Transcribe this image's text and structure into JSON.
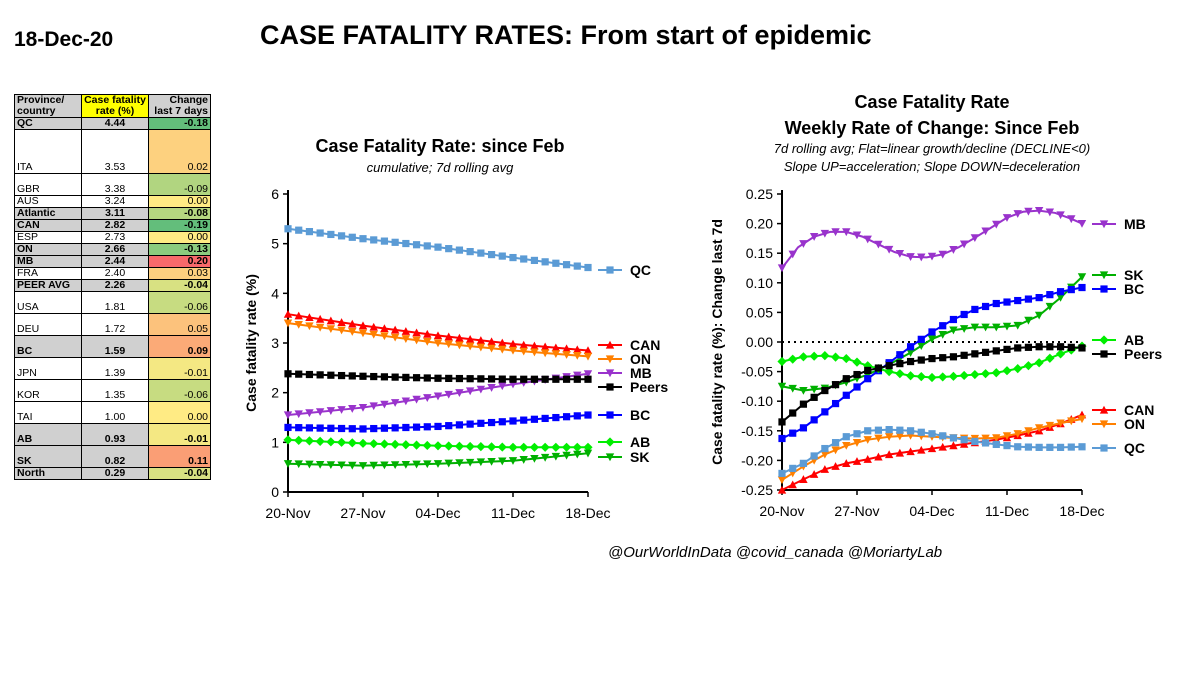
{
  "date_label": "18-Dec-20",
  "main_title": "CASE FATALITY RATES: From start of epidemic",
  "credit": "@OurWorldInData @covid_canada @MoriartyLab",
  "table": {
    "headers": [
      "Province/ country",
      "Case fatality rate (%)",
      "Change last 7 days"
    ],
    "rows": [
      {
        "name": "QC",
        "rate": "4.44",
        "change": "-0.18",
        "bold": true,
        "color": "#63be7b",
        "size": "s"
      },
      {
        "name": "ITA",
        "rate": "3.53",
        "change": "0.02",
        "bold": false,
        "color": "#fdd17f",
        "size": "l"
      },
      {
        "name": "GBR",
        "rate": "3.38",
        "change": "-0.09",
        "bold": false,
        "color": "#b1d580",
        "size": "m"
      },
      {
        "name": "AUS",
        "rate": "3.24",
        "change": "0.00",
        "bold": false,
        "color": "#ffeb84",
        "size": "s"
      },
      {
        "name": "Atlantic",
        "rate": "3.11",
        "change": "-0.08",
        "bold": true,
        "color": "#b6d780",
        "size": "s"
      },
      {
        "name": "CAN",
        "rate": "2.82",
        "change": "-0.19",
        "bold": true,
        "color": "#63be7b",
        "size": "s"
      },
      {
        "name": "ESP",
        "rate": "2.73",
        "change": "0.00",
        "bold": false,
        "color": "#ffeb84",
        "size": "s"
      },
      {
        "name": "ON",
        "rate": "2.66",
        "change": "-0.13",
        "bold": true,
        "color": "#8ccb7e",
        "size": "s"
      },
      {
        "name": "MB",
        "rate": "2.44",
        "change": "0.20",
        "bold": true,
        "color": "#f8696b",
        "size": "s"
      },
      {
        "name": "FRA",
        "rate": "2.40",
        "change": "0.03",
        "bold": false,
        "color": "#fdd07f",
        "size": "s"
      },
      {
        "name": "PEER AVG",
        "rate": "2.26",
        "change": "-0.04",
        "bold": true,
        "color": "#d8e182",
        "size": "s"
      },
      {
        "name": "USA",
        "rate": "1.81",
        "change": "-0.06",
        "bold": false,
        "color": "#c7dc81",
        "size": "m"
      },
      {
        "name": "DEU",
        "rate": "1.72",
        "change": "0.05",
        "bold": false,
        "color": "#fcc27c",
        "size": "m"
      },
      {
        "name": "BC",
        "rate": "1.59",
        "change": "0.09",
        "bold": true,
        "color": "#fbaa77",
        "size": "m"
      },
      {
        "name": "JPN",
        "rate": "1.39",
        "change": "-0.01",
        "bold": false,
        "color": "#f4e883",
        "size": "m"
      },
      {
        "name": "KOR",
        "rate": "1.35",
        "change": "-0.06",
        "bold": false,
        "color": "#c7dc81",
        "size": "m"
      },
      {
        "name": "TAI",
        "rate": "1.00",
        "change": "0.00",
        "bold": false,
        "color": "#ffeb84",
        "size": "m"
      },
      {
        "name": "AB",
        "rate": "0.93",
        "change": "-0.01",
        "bold": true,
        "color": "#f4e883",
        "size": "m"
      },
      {
        "name": "SK",
        "rate": "0.82",
        "change": "0.11",
        "bold": true,
        "color": "#fa9e75",
        "size": "m"
      },
      {
        "name": "North",
        "rate": "0.29",
        "change": "-0.04",
        "bold": true,
        "color": "#d8e182",
        "size": "s"
      }
    ]
  },
  "chart_data": [
    {
      "type": "line",
      "title": "Case Fatality Rate: since Feb",
      "subtitle": "cumulative; 7d rolling avg",
      "xlabel": "",
      "ylabel": "Case fatality rate (%)",
      "x_ticks": [
        "20-Nov",
        "27-Nov",
        "04-Dec",
        "11-Dec",
        "18-Dec"
      ],
      "x_range": [
        0,
        28
      ],
      "ylim": [
        0,
        6
      ],
      "y_ticks": [
        0,
        1,
        2,
        3,
        4,
        5,
        6
      ],
      "grid": false,
      "series": [
        {
          "name": "QC",
          "color": "#5b9bd5",
          "marker": "square",
          "x": [
            0,
            7,
            14,
            21,
            28
          ],
          "y": [
            5.3,
            5.1,
            4.93,
            4.72,
            4.52
          ]
        },
        {
          "name": "CAN",
          "color": "#ff0000",
          "marker": "triangle-up",
          "x": [
            0,
            7,
            14,
            21,
            28
          ],
          "y": [
            3.58,
            3.35,
            3.15,
            2.98,
            2.85
          ]
        },
        {
          "name": "ON",
          "color": "#ff8000",
          "marker": "triangle-down",
          "x": [
            0,
            7,
            14,
            21,
            28
          ],
          "y": [
            3.4,
            3.2,
            3.0,
            2.85,
            2.73
          ]
        },
        {
          "name": "MB",
          "color": "#9933cc",
          "marker": "triangle-down",
          "x": [
            0,
            7,
            14,
            21,
            28
          ],
          "y": [
            1.55,
            1.7,
            1.93,
            2.17,
            2.38
          ]
        },
        {
          "name": "Peers",
          "color": "#000000",
          "marker": "square",
          "x": [
            0,
            7,
            14,
            21,
            28
          ],
          "y": [
            2.38,
            2.33,
            2.29,
            2.27,
            2.27
          ]
        },
        {
          "name": "BC",
          "color": "#0000ff",
          "marker": "square",
          "x": [
            0,
            7,
            14,
            21,
            28
          ],
          "y": [
            1.3,
            1.27,
            1.32,
            1.43,
            1.55
          ]
        },
        {
          "name": "AB",
          "color": "#00ee00",
          "marker": "diamond",
          "x": [
            0,
            7,
            14,
            21,
            28
          ],
          "y": [
            1.05,
            0.98,
            0.93,
            0.9,
            0.9
          ]
        },
        {
          "name": "SK",
          "color": "#00b000",
          "marker": "triangle-down",
          "x": [
            0,
            7,
            14,
            21,
            28
          ],
          "y": [
            0.57,
            0.53,
            0.57,
            0.63,
            0.78
          ]
        }
      ]
    },
    {
      "type": "line",
      "title": "Case Fatality Rate",
      "title2": "Weekly Rate of Change: Since Feb",
      "subtitle": "7d rolling avg; Flat=linear growth/decline (DECLINE<0)",
      "subtitle2": "Slope UP=acceleration; Slope DOWN=deceleration",
      "xlabel": "",
      "ylabel": "Case fatality rate (%): Change last 7d",
      "x_ticks": [
        "20-Nov",
        "27-Nov",
        "04-Dec",
        "11-Dec",
        "18-Dec"
      ],
      "x_range": [
        0,
        28
      ],
      "ylim": [
        -0.25,
        0.25
      ],
      "y_ticks": [
        "-0.25",
        "-0.20",
        "-0.15",
        "-0.10",
        "-0.05",
        "0.00",
        "0.05",
        "0.10",
        "0.15",
        "0.20",
        "0.25"
      ],
      "reference_line": 0,
      "grid": false,
      "series": [
        {
          "name": "MB",
          "color": "#9933cc",
          "marker": "triangle-down",
          "x": [
            0,
            1.5,
            3,
            4.5,
            6,
            7.5,
            9,
            10.5,
            12,
            13.5,
            15,
            16.5,
            18,
            19.5,
            21,
            22.5,
            24,
            25.5,
            27,
            28
          ],
          "y": [
            0.125,
            0.16,
            0.178,
            0.186,
            0.186,
            0.178,
            0.165,
            0.152,
            0.144,
            0.143,
            0.148,
            0.16,
            0.176,
            0.193,
            0.21,
            0.22,
            0.222,
            0.218,
            0.208,
            0.2
          ]
        },
        {
          "name": "SK",
          "color": "#00b000",
          "marker": "triangle-down",
          "x": [
            0,
            2,
            4,
            6,
            8,
            10,
            12,
            14,
            16,
            18,
            20,
            22,
            24,
            26,
            28
          ],
          "y": [
            -0.075,
            -0.082,
            -0.078,
            -0.068,
            -0.055,
            -0.038,
            -0.018,
            0.005,
            0.02,
            0.025,
            0.025,
            0.028,
            0.045,
            0.075,
            0.11
          ]
        },
        {
          "name": "BC",
          "color": "#0000ff",
          "marker": "square",
          "x": [
            0,
            2,
            4,
            6,
            8,
            10,
            12,
            14,
            16,
            18,
            20,
            22,
            24,
            26,
            28
          ],
          "y": [
            -0.163,
            -0.145,
            -0.118,
            -0.09,
            -0.062,
            -0.035,
            -0.008,
            0.017,
            0.038,
            0.055,
            0.065,
            0.07,
            0.075,
            0.085,
            0.092
          ]
        },
        {
          "name": "AB",
          "color": "#00ee00",
          "marker": "diamond",
          "x": [
            0,
            2,
            4,
            6,
            8,
            10,
            12,
            14,
            16,
            18,
            20,
            22,
            24,
            26,
            28
          ],
          "y": [
            -0.033,
            -0.025,
            -0.023,
            -0.028,
            -0.04,
            -0.05,
            -0.057,
            -0.06,
            -0.058,
            -0.055,
            -0.052,
            -0.045,
            -0.035,
            -0.02,
            -0.007
          ]
        },
        {
          "name": "Peers",
          "color": "#000000",
          "marker": "square",
          "x": [
            0,
            2,
            4,
            6,
            8,
            10,
            12,
            14,
            16,
            18,
            20,
            22,
            24,
            26,
            28
          ],
          "y": [
            -0.135,
            -0.105,
            -0.082,
            -0.062,
            -0.048,
            -0.04,
            -0.033,
            -0.028,
            -0.025,
            -0.02,
            -0.015,
            -0.01,
            -0.008,
            -0.008,
            -0.01
          ]
        },
        {
          "name": "CAN",
          "color": "#ff0000",
          "marker": "triangle-up",
          "x": [
            0,
            2,
            4,
            6,
            8,
            10,
            12,
            14,
            16,
            18,
            20,
            22,
            24,
            26,
            28
          ],
          "y": [
            -0.25,
            -0.232,
            -0.215,
            -0.205,
            -0.198,
            -0.19,
            -0.185,
            -0.18,
            -0.175,
            -0.17,
            -0.165,
            -0.158,
            -0.15,
            -0.138,
            -0.123
          ]
        },
        {
          "name": "ON",
          "color": "#ff8000",
          "marker": "triangle-down",
          "x": [
            0,
            2,
            4,
            6,
            8,
            10,
            12,
            14,
            16,
            18,
            20,
            22,
            24,
            26,
            28
          ],
          "y": [
            -0.233,
            -0.21,
            -0.19,
            -0.175,
            -0.165,
            -0.16,
            -0.158,
            -0.16,
            -0.162,
            -0.163,
            -0.162,
            -0.155,
            -0.145,
            -0.137,
            -0.13
          ]
        },
        {
          "name": "QC",
          "color": "#5b9bd5",
          "marker": "square",
          "x": [
            0,
            2,
            4,
            6,
            8,
            10,
            12,
            14,
            16,
            18,
            20,
            22,
            24,
            26,
            28
          ],
          "y": [
            -0.222,
            -0.205,
            -0.18,
            -0.16,
            -0.15,
            -0.148,
            -0.15,
            -0.155,
            -0.162,
            -0.168,
            -0.173,
            -0.177,
            -0.178,
            -0.178,
            -0.177
          ]
        }
      ]
    }
  ]
}
